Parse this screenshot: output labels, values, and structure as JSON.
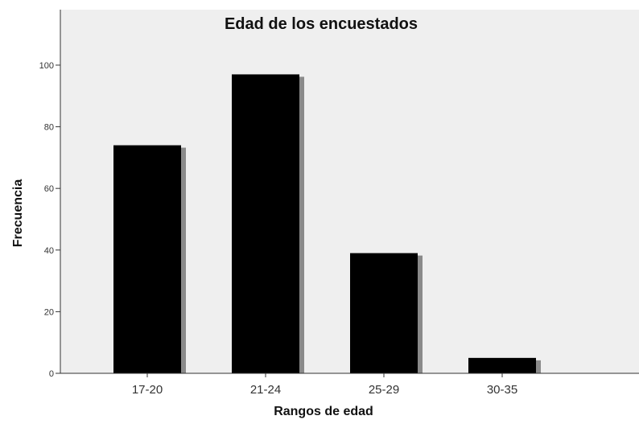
{
  "chart_data": {
    "type": "bar",
    "title": "Edad de los encuestados",
    "xlabel": "Rangos de edad",
    "ylabel": "Frecuencia",
    "categories": [
      "17-20",
      "21-24",
      "25-29",
      "30-35"
    ],
    "values": [
      74,
      97,
      39,
      5
    ],
    "ylim": [
      0,
      118
    ],
    "yticks": [
      0,
      20,
      40,
      60,
      80,
      100
    ],
    "grid": false,
    "legend": "none",
    "colors": {
      "bar": "#000000",
      "bar_shadow": "#8a8a8a",
      "plot_background": "#efefef",
      "axis": "#333333"
    }
  }
}
